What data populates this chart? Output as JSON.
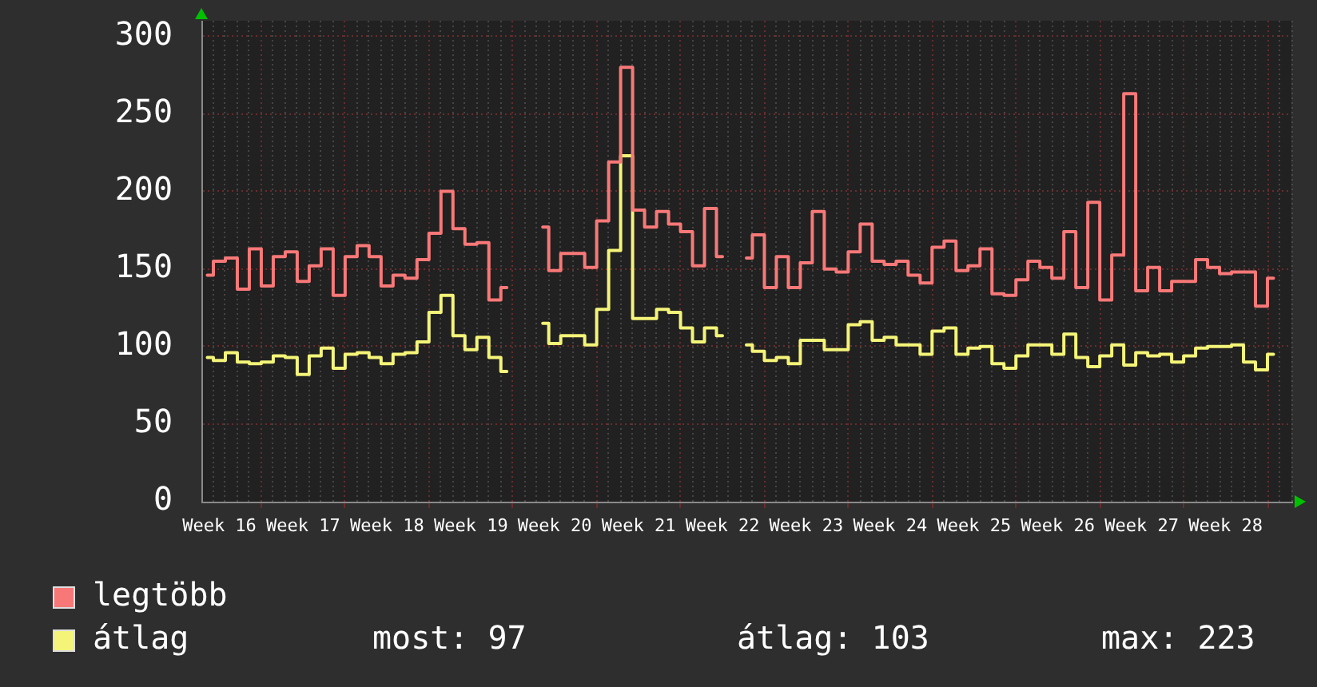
{
  "chart_data": {
    "type": "step",
    "categories": [
      null,
      "Week 16",
      null,
      null,
      null,
      null,
      null,
      null,
      "Week 17",
      null,
      null,
      null,
      null,
      null,
      null,
      "Week 18",
      null,
      null,
      null,
      null,
      null,
      null,
      "Week 19",
      null,
      null,
      null,
      null,
      null,
      null,
      "Week 20",
      null,
      null,
      null,
      null,
      null,
      null,
      "Week 21",
      null,
      null,
      null,
      null,
      null,
      null,
      "Week 22",
      null,
      null,
      null,
      null,
      null,
      null,
      "Week 23",
      null,
      null,
      null,
      null,
      null,
      null,
      "Week 24",
      null,
      null,
      null,
      null,
      null,
      null,
      "Week 25",
      null,
      null,
      null,
      null,
      null,
      null,
      "Week 26",
      null,
      null,
      null,
      null,
      null,
      null,
      "Week 27",
      null,
      null,
      null,
      null,
      null,
      null,
      "Week 28",
      null,
      null,
      null,
      null,
      null
    ],
    "ylim": [
      0,
      310
    ],
    "yticks": [
      0,
      50,
      100,
      150,
      200,
      250,
      300
    ],
    "grid": true,
    "legend": "bottom",
    "series": [
      {
        "name": "legtöbb",
        "color": "#f87878",
        "values": [
          146,
          155,
          157,
          137,
          163,
          139,
          158,
          161,
          142,
          152,
          163,
          133,
          158,
          165,
          158,
          139,
          146,
          144,
          156,
          173,
          200,
          176,
          166,
          167,
          130,
          138,
          null,
          null,
          177,
          149,
          160,
          160,
          151,
          181,
          219,
          280,
          188,
          177,
          187,
          179,
          174,
          152,
          189,
          158,
          null,
          157,
          172,
          138,
          158,
          138,
          154,
          187,
          150,
          148,
          161,
          179,
          155,
          153,
          155,
          146,
          141,
          164,
          168,
          149,
          152,
          163,
          134,
          133,
          143,
          155,
          151,
          144,
          174,
          138,
          193,
          130,
          159,
          263,
          136,
          151,
          136,
          142,
          142,
          156,
          151,
          147,
          148,
          148,
          126,
          144,
          null
        ]
      },
      {
        "name": "átlag",
        "color": "#f4f478",
        "values": [
          93,
          91,
          96,
          90,
          89,
          90,
          94,
          93,
          82,
          94,
          99,
          86,
          95,
          96,
          93,
          89,
          95,
          96,
          103,
          122,
          133,
          107,
          98,
          106,
          93,
          84,
          null,
          null,
          115,
          102,
          107,
          107,
          101,
          124,
          162,
          223,
          118,
          118,
          124,
          122,
          112,
          103,
          112,
          107,
          null,
          101,
          97,
          91,
          93,
          89,
          104,
          104,
          98,
          98,
          114,
          116,
          104,
          106,
          101,
          101,
          95,
          110,
          112,
          95,
          99,
          100,
          89,
          86,
          94,
          101,
          101,
          95,
          108,
          93,
          87,
          94,
          101,
          88,
          96,
          94,
          95,
          90,
          94,
          99,
          100,
          100,
          101,
          90,
          85,
          95,
          null
        ]
      }
    ],
    "annotations": [
      "most: 97",
      "átlag: 103",
      "max: 223"
    ]
  }
}
